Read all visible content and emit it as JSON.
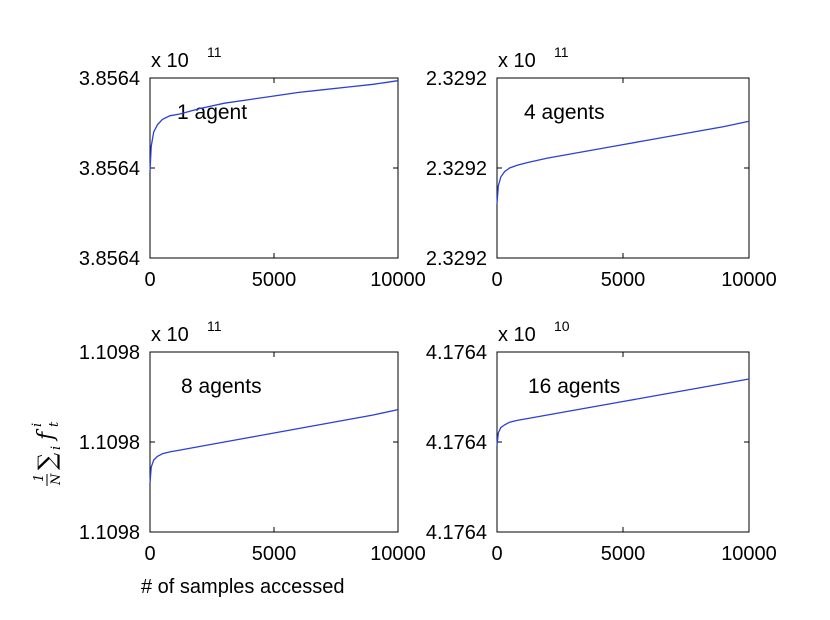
{
  "figure": {
    "xlabel": "# of samples accessed",
    "ylabel": {
      "frac_num": "1",
      "frac_den": "N",
      "sum": "∑",
      "sub": "i",
      "f": "f",
      "f_sub": "t",
      "f_sup": "i"
    }
  },
  "chart_data": [
    {
      "type": "line",
      "annotation": "1 agent",
      "exponent_label": {
        "base": "x 10",
        "power": "11"
      },
      "xlim": [
        0,
        10000
      ],
      "xticks": [
        "0",
        "5000",
        "10000"
      ],
      "yticks": [
        "3.8564",
        "3.8564",
        "3.8564"
      ],
      "ylim": [
        0,
        1
      ],
      "color": "#2B3FD9",
      "series": [
        {
          "x": [
            0,
            50,
            150,
            300,
            500,
            800,
            1200,
            2000,
            3000,
            4000,
            5000,
            6000,
            7000,
            8000,
            9000,
            10000
          ],
          "values": [
            0.48,
            0.62,
            0.7,
            0.74,
            0.77,
            0.79,
            0.8,
            0.83,
            0.86,
            0.88,
            0.9,
            0.92,
            0.935,
            0.95,
            0.965,
            0.985
          ]
        }
      ]
    },
    {
      "type": "line",
      "annotation": "4 agents",
      "exponent_label": {
        "base": "x 10",
        "power": "11"
      },
      "xlim": [
        0,
        10000
      ],
      "xticks": [
        "0",
        "5000",
        "10000"
      ],
      "yticks": [
        "2.3292",
        "2.3292",
        "2.3292"
      ],
      "ylim": [
        0,
        1
      ],
      "color": "#2B3FD9",
      "series": [
        {
          "x": [
            0,
            50,
            150,
            300,
            500,
            800,
            1200,
            2000,
            3000,
            4000,
            5000,
            6000,
            7000,
            8000,
            9000,
            10000
          ],
          "values": [
            0.3,
            0.4,
            0.45,
            0.48,
            0.5,
            0.515,
            0.53,
            0.555,
            0.58,
            0.605,
            0.63,
            0.655,
            0.68,
            0.705,
            0.73,
            0.76
          ]
        }
      ]
    },
    {
      "type": "line",
      "annotation": "8 agents",
      "exponent_label": {
        "base": "x 10",
        "power": "11"
      },
      "xlim": [
        0,
        10000
      ],
      "xticks": [
        "0",
        "5000",
        "10000"
      ],
      "yticks": [
        "1.1098",
        "1.1098",
        "1.1098"
      ],
      "ylim": [
        0,
        1
      ],
      "color": "#2B3FD9",
      "series": [
        {
          "x": [
            0,
            50,
            150,
            300,
            500,
            800,
            1200,
            2000,
            3000,
            4000,
            5000,
            6000,
            7000,
            8000,
            9000,
            10000
          ],
          "values": [
            0.27,
            0.36,
            0.4,
            0.42,
            0.435,
            0.445,
            0.455,
            0.475,
            0.5,
            0.525,
            0.55,
            0.575,
            0.6,
            0.625,
            0.65,
            0.68
          ]
        }
      ]
    },
    {
      "type": "line",
      "annotation": "16 agents",
      "exponent_label": {
        "base": "x 10",
        "power": "10"
      },
      "xlim": [
        0,
        10000
      ],
      "xticks": [
        "0",
        "5000",
        "10000"
      ],
      "yticks": [
        "4.1764",
        "4.1764",
        "4.1764"
      ],
      "ylim": [
        0,
        1
      ],
      "color": "#2B3FD9",
      "series": [
        {
          "x": [
            0,
            50,
            150,
            300,
            500,
            800,
            1200,
            2000,
            3000,
            4000,
            5000,
            6000,
            7000,
            8000,
            9000,
            10000
          ],
          "values": [
            0.48,
            0.55,
            0.58,
            0.595,
            0.61,
            0.62,
            0.63,
            0.65,
            0.675,
            0.7,
            0.725,
            0.75,
            0.775,
            0.8,
            0.825,
            0.85
          ]
        }
      ]
    }
  ]
}
